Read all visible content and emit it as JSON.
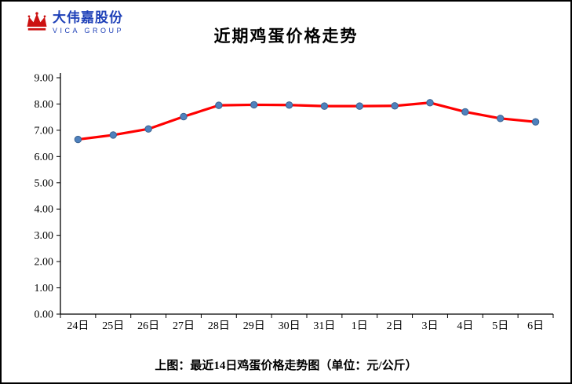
{
  "header": {
    "logo": {
      "company_cn": "大伟嘉股份",
      "company_en": "VICA GROUP",
      "icon": "crown-icon",
      "brand_color": "#1f41b8",
      "crown_color": "#cc1111"
    },
    "title": "近期鸡蛋价格走势"
  },
  "caption": "上图：最近14日鸡蛋价格走势图（单位：元/公斤）",
  "chart_data": {
    "type": "line",
    "title": "近期鸡蛋价格走势",
    "categories": [
      "24日",
      "25日",
      "26日",
      "27日",
      "28日",
      "29日",
      "30日",
      "31日",
      "1日",
      "2日",
      "3日",
      "4日",
      "5日",
      "6日"
    ],
    "values": [
      6.65,
      6.82,
      7.05,
      7.52,
      7.95,
      7.97,
      7.96,
      7.92,
      7.92,
      7.93,
      8.05,
      7.7,
      7.45,
      7.32
    ],
    "xlabel": "",
    "ylabel": "",
    "ylim": [
      0,
      9
    ],
    "ytick_step": 1,
    "ytick_labels": [
      "0.00",
      "1.00",
      "2.00",
      "3.00",
      "4.00",
      "5.00",
      "6.00",
      "7.00",
      "8.00",
      "9.00"
    ],
    "grid": false,
    "legend_position": "none",
    "line_color": "#ff0000",
    "marker_color": "#4f81bd",
    "marker_edge_color": "#3a6291",
    "axis_color": "#000000",
    "unit": "元/公斤"
  }
}
